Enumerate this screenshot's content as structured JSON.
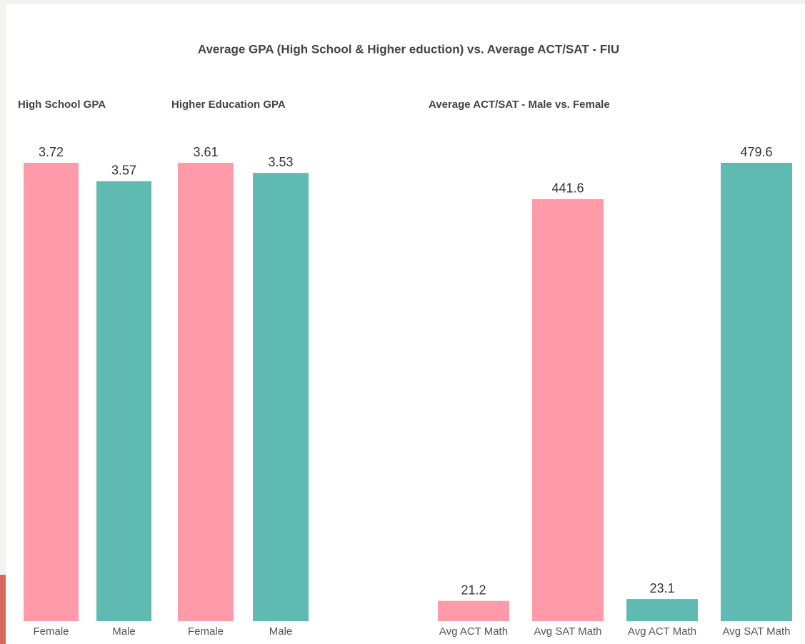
{
  "title": "Average GPA (High School & Higher eduction) vs. Average ACT/SAT - FIU",
  "chart_data": [
    {
      "type": "bar",
      "title": "High School GPA",
      "categories": [
        "Female",
        "Male"
      ],
      "values": [
        3.72,
        3.57
      ],
      "colors": [
        "#ff9aa8",
        "#5fbab2"
      ]
    },
    {
      "type": "bar",
      "title": "Higher Education GPA",
      "categories": [
        "Female",
        "Male"
      ],
      "values": [
        3.61,
        3.53
      ],
      "colors": [
        "#ff9aa8",
        "#5fbab2"
      ]
    },
    {
      "type": "bar",
      "title": "Average ACT/SAT - Male vs. Female",
      "categories": [
        "Avg ACT Math",
        "Avg SAT Math",
        "Avg ACT Math",
        "Avg SAT Math"
      ],
      "values": [
        21.2,
        441.6,
        23.1,
        479.6
      ],
      "colors": [
        "#ff9aa8",
        "#ff9aa8",
        "#5fbab2",
        "#5fbab2"
      ]
    }
  ]
}
